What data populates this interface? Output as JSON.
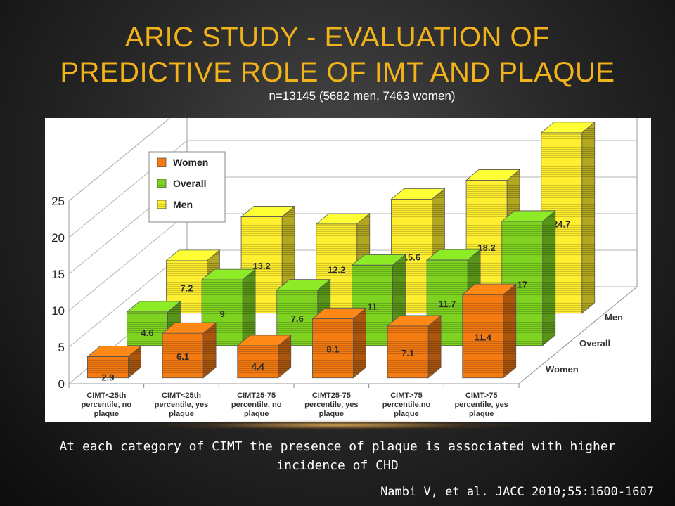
{
  "slide": {
    "title_line1": "ARIC STUDY - EVALUATION OF",
    "title_line2": "PREDICTIVE ROLE OF IMT AND PLAQUE",
    "subtitle": "n=13145 (5682 men, 7463 women)",
    "caption": "At each category of CIMT the presence of plaque is associated with higher incidence of CHD",
    "citation": "Nambi V, et al. JACC 2010;55:1600-1607"
  },
  "chart_data": {
    "type": "bar",
    "categories": [
      [
        "CIMT<25th",
        "percentile, no",
        "plaque"
      ],
      [
        "CIMT<25th",
        "percentile, yes",
        "plaque"
      ],
      [
        "CIMT25-75",
        "percentile, no",
        "plaque"
      ],
      [
        "CIMT25-75",
        "percentile, yes",
        "plaque"
      ],
      [
        "CIMT>75",
        "percentile,no",
        "plaque"
      ],
      [
        "CIMT>75",
        "percentile, yes",
        "plaque"
      ]
    ],
    "series": [
      {
        "name": "Women",
        "values": [
          2.9,
          6.1,
          4.4,
          8.1,
          7.1,
          11.4
        ]
      },
      {
        "name": "Overall",
        "values": [
          4.6,
          9,
          7.6,
          11,
          11.7,
          17
        ]
      },
      {
        "name": "Men",
        "values": [
          7.2,
          13.2,
          12.2,
          15.6,
          18.2,
          24.7
        ]
      }
    ],
    "depth_labels": [
      "Men",
      "Overall",
      "Women"
    ],
    "yticks": [
      0,
      5,
      10,
      15,
      20,
      25
    ],
    "ylim": [
      0,
      25
    ],
    "legend_position": "top-left",
    "colors": {
      "Women": "#f47a12",
      "Overall": "#7ed321",
      "Men": "#ffef30"
    }
  }
}
